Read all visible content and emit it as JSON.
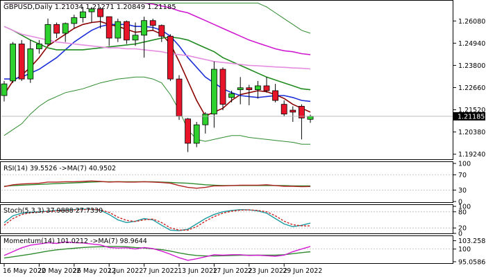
{
  "chart_data": [
    {
      "type": "candlestick",
      "title": "GBPUSD,Daily  1.21034 1.21271 1.20849 1.21185",
      "symbol": "GBPUSD",
      "timeframe": "Daily",
      "ohlc_header": [
        "1.21034",
        "1.21271",
        "1.20849",
        "1.21185"
      ],
      "current_price": 1.21185,
      "current_price_label": "1.21185",
      "ylim": [
        1.1905,
        1.2705
      ],
      "y_ticks": [
        {
          "value": 1.2608,
          "label": "1.26080"
        },
        {
          "value": 1.2494,
          "label": "1.24940"
        },
        {
          "value": 1.238,
          "label": "1.23800"
        },
        {
          "value": 1.2266,
          "label": "1.22660"
        },
        {
          "value": 1.2152,
          "label": "1.21520"
        },
        {
          "value": 1.2038,
          "label": "1.20380"
        },
        {
          "value": 1.1924,
          "label": "1.19240"
        }
      ],
      "x_tick_labels": [
        {
          "index": 0,
          "label": "16 May 2022"
        },
        {
          "index": 4,
          "label": "20 May 2022"
        },
        {
          "index": 8,
          "label": "26 May 2022"
        },
        {
          "index": 12,
          "label": "1 Jun 2022"
        },
        {
          "index": 16,
          "label": "7 Jun 2022"
        },
        {
          "index": 20,
          "label": "13 Jun 2022"
        },
        {
          "index": 24,
          "label": "17 Jun 2022"
        },
        {
          "index": 28,
          "label": "23 Jun 2022"
        },
        {
          "index": 32,
          "label": "29 Jun 2022"
        }
      ],
      "candles": [
        {
          "o": 1.2225,
          "h": 1.23,
          "l": 1.2195,
          "c": 1.2285
        },
        {
          "o": 1.23,
          "h": 1.25,
          "l": 1.229,
          "c": 1.249
        },
        {
          "o": 1.249,
          "h": 1.251,
          "l": 1.23,
          "c": 1.231
        },
        {
          "o": 1.231,
          "h": 1.251,
          "l": 1.229,
          "c": 1.2465
        },
        {
          "o": 1.2465,
          "h": 1.251,
          "l": 1.244,
          "c": 1.249
        },
        {
          "o": 1.249,
          "h": 1.262,
          "l": 1.248,
          "c": 1.259
        },
        {
          "o": 1.259,
          "h": 1.26,
          "l": 1.252,
          "c": 1.2545
        },
        {
          "o": 1.2545,
          "h": 1.26,
          "l": 1.25,
          "c": 1.2595
        },
        {
          "o": 1.2595,
          "h": 1.264,
          "l": 1.257,
          "c": 1.2625
        },
        {
          "o": 1.2625,
          "h": 1.268,
          "l": 1.26,
          "c": 1.2655
        },
        {
          "o": 1.2655,
          "h": 1.268,
          "l": 1.26,
          "c": 1.267
        },
        {
          "o": 1.267,
          "h": 1.268,
          "l": 1.257,
          "c": 1.263
        },
        {
          "o": 1.263,
          "h": 1.263,
          "l": 1.248,
          "c": 1.252
        },
        {
          "o": 1.252,
          "h": 1.262,
          "l": 1.25,
          "c": 1.2605
        },
        {
          "o": 1.2605,
          "h": 1.261,
          "l": 1.249,
          "c": 1.251
        },
        {
          "o": 1.251,
          "h": 1.26,
          "l": 1.248,
          "c": 1.2535
        },
        {
          "o": 1.2535,
          "h": 1.263,
          "l": 1.242,
          "c": 1.261
        },
        {
          "o": 1.261,
          "h": 1.262,
          "l": 1.256,
          "c": 1.2585
        },
        {
          "o": 1.2585,
          "h": 1.259,
          "l": 1.25,
          "c": 1.253
        },
        {
          "o": 1.253,
          "h": 1.254,
          "l": 1.23,
          "c": 1.231
        },
        {
          "o": 1.231,
          "h": 1.233,
          "l": 1.21,
          "c": 1.212
        },
        {
          "o": 1.2105,
          "h": 1.211,
          "l": 1.1935,
          "c": 1.198
        },
        {
          "o": 1.198,
          "h": 1.209,
          "l": 1.196,
          "c": 1.2075
        },
        {
          "o": 1.2075,
          "h": 1.214,
          "l": 1.203,
          "c": 1.213
        },
        {
          "o": 1.213,
          "h": 1.24,
          "l": 1.206,
          "c": 1.236
        },
        {
          "o": 1.236,
          "h": 1.237,
          "l": 1.215,
          "c": 1.218
        },
        {
          "o": 1.2215,
          "h": 1.225,
          "l": 1.219,
          "c": 1.2235
        },
        {
          "o": 1.2255,
          "h": 1.232,
          "l": 1.218,
          "c": 1.2265
        },
        {
          "o": 1.2265,
          "h": 1.228,
          "l": 1.2175,
          "c": 1.2255
        },
        {
          "o": 1.2255,
          "h": 1.23,
          "l": 1.221,
          "c": 1.2275
        },
        {
          "o": 1.2275,
          "h": 1.232,
          "l": 1.224,
          "c": 1.225
        },
        {
          "o": 1.225,
          "h": 1.2285,
          "l": 1.219,
          "c": 1.22
        },
        {
          "o": 1.218,
          "h": 1.22,
          "l": 1.212,
          "c": 1.213
        },
        {
          "o": 1.215,
          "h": 1.217,
          "l": 1.209,
          "c": 1.214
        },
        {
          "o": 1.217,
          "h": 1.218,
          "l": 1.2,
          "c": 1.211
        },
        {
          "o": 1.2103,
          "h": 1.2127,
          "l": 1.2085,
          "c": 1.2119
        }
      ],
      "overlays": [
        {
          "name": "fast-ma",
          "color": "#8b0000",
          "values": [
            1.223,
            1.23,
            1.233,
            1.237,
            1.242,
            1.248,
            1.251,
            1.254,
            1.257,
            1.259,
            1.26,
            1.2605,
            1.259,
            1.258,
            1.2565,
            1.255,
            1.2555,
            1.256,
            1.254,
            1.249,
            1.24,
            1.23,
            1.22,
            1.212,
            1.214,
            1.216,
            1.22,
            1.223,
            1.224,
            1.225,
            1.2245,
            1.223,
            1.221,
            1.218,
            1.216,
            1.214
          ]
        },
        {
          "name": "medium-ma",
          "color": "#1c2fd8",
          "values": [
            1.231,
            1.231,
            1.232,
            1.234,
            1.236,
            1.239,
            1.242,
            1.246,
            1.25,
            1.253,
            1.256,
            1.258,
            1.259,
            1.259,
            1.259,
            1.258,
            1.258,
            1.2575,
            1.256,
            1.253,
            1.248,
            1.242,
            1.237,
            1.232,
            1.229,
            1.226,
            1.224,
            1.2225,
            1.222,
            1.2215,
            1.222,
            1.2225,
            1.2225,
            1.2215,
            1.22,
            1.2195
          ]
        },
        {
          "name": "slow-ma",
          "color": "#1f8a1f",
          "values": [
            1.258,
            1.256,
            1.2535,
            1.251,
            1.249,
            1.247,
            1.246,
            1.246,
            1.246,
            1.246,
            1.2465,
            1.247,
            1.2475,
            1.248,
            1.2485,
            1.249,
            1.25,
            1.251,
            1.252,
            1.2525,
            1.252,
            1.251,
            1.249,
            1.247,
            1.245,
            1.242,
            1.24,
            1.238,
            1.236,
            1.234,
            1.232,
            1.2305,
            1.229,
            1.2275,
            1.226,
            1.2255
          ]
        },
        {
          "name": "pink-ma",
          "color": "#e58ce0",
          "values": [
            1.258,
            1.256,
            1.254,
            1.253,
            1.252,
            1.251,
            1.25,
            1.2495,
            1.249,
            1.2485,
            1.248,
            1.2475,
            1.247,
            1.247,
            1.2465,
            1.2465,
            1.246,
            1.2455,
            1.245,
            1.244,
            1.2435,
            1.243,
            1.242,
            1.241,
            1.24,
            1.2395,
            1.239,
            1.2385,
            1.238,
            1.2378,
            1.2375,
            1.2372,
            1.237,
            1.2367,
            1.2365,
            1.2362
          ]
        },
        {
          "name": "magenta-ma",
          "color": "#d119d1",
          "values": [
            1.27,
            1.27,
            1.27,
            1.27,
            1.27,
            1.27,
            1.27,
            1.27,
            1.27,
            1.27,
            1.27,
            1.27,
            1.27,
            1.27,
            1.27,
            1.27,
            1.27,
            1.2695,
            1.2685,
            1.2675,
            1.266,
            1.265,
            1.263,
            1.261,
            1.259,
            1.257,
            1.255,
            1.253,
            1.251,
            1.2495,
            1.248,
            1.2465,
            1.2455,
            1.245,
            1.244,
            1.2435
          ]
        },
        {
          "name": "bb-upper",
          "color": "#2e8b2e",
          "values": [
            1.27,
            1.27,
            1.27,
            1.27,
            1.27,
            1.27,
            1.27,
            1.27,
            1.27,
            1.27,
            1.27,
            1.27,
            1.27,
            1.27,
            1.27,
            1.27,
            1.27,
            1.27,
            1.27,
            1.27,
            1.27,
            1.27,
            1.27,
            1.27,
            1.27,
            1.27,
            1.27,
            1.27,
            1.27,
            1.27,
            1.268,
            1.265,
            1.262,
            1.259,
            1.256,
            1.2545
          ]
        },
        {
          "name": "bb-lower",
          "color": "#2e8b2e",
          "values": [
            1.202,
            1.205,
            1.208,
            1.213,
            1.217,
            1.22,
            1.222,
            1.224,
            1.225,
            1.226,
            1.2275,
            1.229,
            1.23,
            1.231,
            1.2315,
            1.232,
            1.232,
            1.231,
            1.229,
            1.223,
            1.215,
            1.205,
            1.2,
            1.199,
            1.2,
            1.201,
            1.202,
            1.202,
            1.201,
            1.2005,
            1.2,
            1.1995,
            1.199,
            1.1985,
            1.1975,
            1.1975
          ]
        }
      ]
    },
    {
      "type": "line",
      "title": "RSI(14) 39.5526 ->MA(7) 40.9502",
      "ylim": [
        0,
        100
      ],
      "y_ticks": [
        {
          "value": 100,
          "label": "100"
        },
        {
          "value": 70,
          "label": "70"
        },
        {
          "value": 30,
          "label": "30"
        },
        {
          "value": 0,
          "label": "0"
        }
      ],
      "series": [
        {
          "color": "#2e8b2e",
          "values": [
            40,
            42,
            43,
            44,
            45,
            46,
            47,
            48,
            49,
            50,
            51,
            52,
            52,
            52,
            52,
            52,
            52,
            52,
            51,
            50,
            49,
            48,
            46,
            44,
            43,
            42,
            42,
            42,
            42,
            42,
            42,
            42,
            42,
            41,
            41,
            41
          ]
        },
        {
          "color": "#b22222",
          "values": [
            39,
            44,
            46,
            47,
            48,
            51,
            51,
            52,
            52,
            53,
            54,
            53,
            51,
            52,
            51,
            51,
            52,
            51,
            50,
            48,
            42,
            37,
            35,
            37,
            41,
            41,
            42,
            43,
            43,
            43,
            44,
            42,
            40,
            40,
            39,
            39.5
          ]
        }
      ]
    },
    {
      "type": "line",
      "title": "Stoch(5,3,3) 37.9888 27.7330",
      "ylim": [
        0,
        100
      ],
      "y_ticks": [
        {
          "value": 100,
          "label": "100"
        },
        {
          "value": 80,
          "label": "80"
        },
        {
          "value": 20,
          "label": "20"
        },
        {
          "value": 0,
          "label": "0"
        }
      ],
      "series": [
        {
          "color": "#1a9aa0",
          "values": [
            40,
            65,
            75,
            78,
            80,
            82,
            85,
            86,
            88,
            90,
            89,
            86,
            70,
            50,
            40,
            45,
            55,
            50,
            30,
            12,
            10,
            15,
            35,
            55,
            70,
            80,
            85,
            88,
            87,
            83,
            75,
            55,
            35,
            25,
            30,
            38
          ]
        },
        {
          "color": "#cc2222",
          "values": [
            30,
            55,
            70,
            76,
            79,
            81,
            83,
            85,
            87,
            88,
            89,
            87,
            78,
            60,
            48,
            44,
            50,
            53,
            40,
            20,
            12,
            12,
            25,
            45,
            62,
            75,
            82,
            86,
            87,
            85,
            80,
            65,
            45,
            32,
            28,
            27.7
          ]
        }
      ]
    },
    {
      "type": "line",
      "title": "Momentum(14) 101.0212 ->MA(7) 98.9644",
      "ylim": [
        94.5,
        104.5
      ],
      "y_ticks": [
        {
          "value": 103.258,
          "label": "103.258"
        },
        {
          "value": 100,
          "label": "100"
        },
        {
          "value": 95.0586,
          "label": "95.0586"
        }
      ],
      "series": [
        {
          "color": "#2e8b2e",
          "values": [
            96.5,
            97,
            97.5,
            98,
            98.6,
            99.2,
            99.7,
            100,
            100.3,
            100.6,
            100.8,
            100.9,
            101,
            101,
            100.9,
            100.6,
            100.4,
            100.1,
            99.8,
            99.2,
            98.5,
            97.9,
            97.5,
            97.3,
            97.3,
            97.4,
            97.5,
            97.6,
            97.6,
            97.6,
            97.6,
            97.6,
            97.8,
            98.2,
            98.6,
            98.96
          ]
        },
        {
          "color": "#d119d1",
          "values": [
            97.5,
            99,
            100.5,
            101.5,
            102,
            102.5,
            102.2,
            102.8,
            102.5,
            102.4,
            102,
            101.6,
            100.6,
            100.4,
            100.5,
            100,
            100.6,
            100.2,
            99.2,
            98,
            96.6,
            95.6,
            96.2,
            97,
            97.8,
            97.6,
            97.8,
            97.8,
            97.5,
            97.6,
            97.4,
            97.2,
            97.6,
            99,
            100,
            101.02
          ]
        }
      ]
    }
  ]
}
